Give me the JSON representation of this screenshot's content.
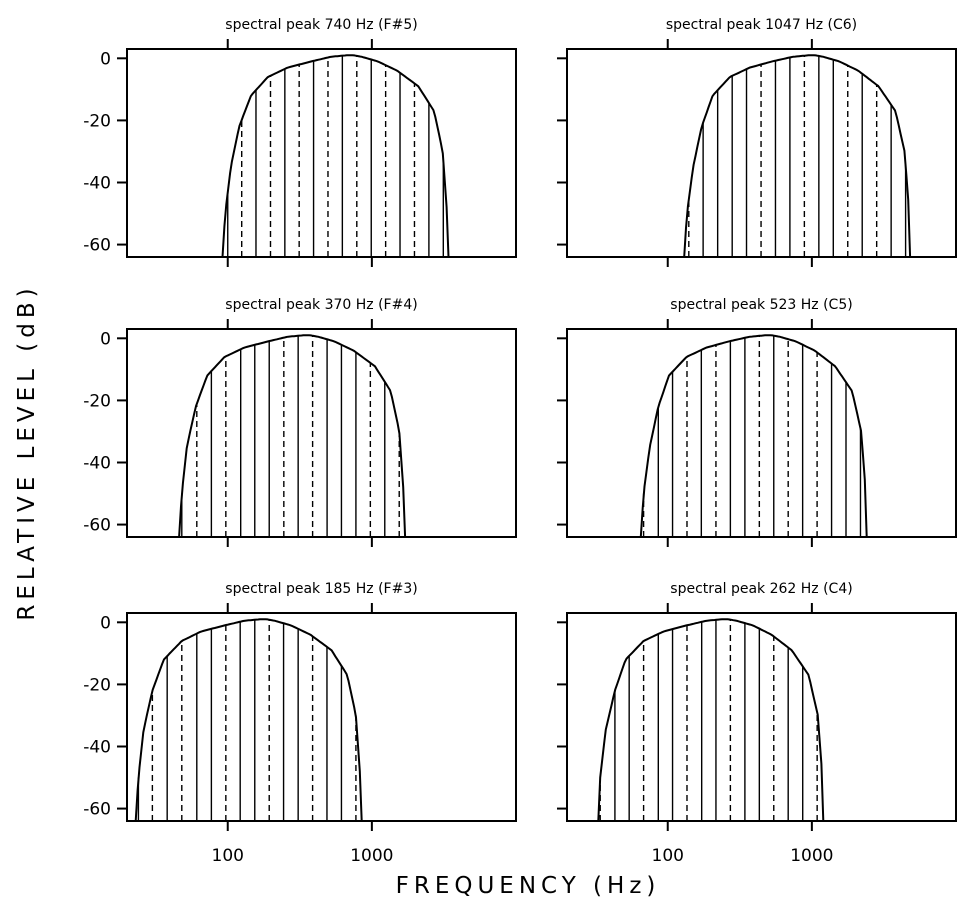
{
  "figure": {
    "ylabel": "RELATIVE LEVEL (dB)",
    "xlabel": "FREQUENCY (Hz)"
  },
  "chart_data": [
    {
      "type": "line",
      "title": "spectral peak  740 Hz (F#5)",
      "peak_hz": 740,
      "x_scale": "log",
      "xlim": [
        20,
        10000
      ],
      "ylim": [
        -64,
        3
      ],
      "ytick_labels": [
        "0",
        "-20",
        "-40",
        "-60"
      ],
      "yticks": [
        0,
        -20,
        -40,
        -60
      ],
      "xticks": [
        100,
        1000
      ],
      "xtick_labels": [],
      "envelope": {
        "x": [
          92,
          96,
          105,
          120,
          145,
          190,
          260,
          380,
          520,
          680,
          740,
          850,
          1100,
          1500,
          2100,
          2700,
          3100,
          3300,
          3400
        ],
        "y": [
          -64,
          -50,
          -35,
          -22,
          -12,
          -6,
          -3,
          -1,
          0.5,
          1,
          1,
          0.5,
          -1,
          -4,
          -9,
          -17,
          -30,
          -48,
          -64
        ]
      },
      "partials": [
        {
          "freq": 100,
          "solid": true
        },
        {
          "freq": 125,
          "solid": false
        },
        {
          "freq": 157,
          "solid": true
        },
        {
          "freq": 198,
          "solid": false
        },
        {
          "freq": 249,
          "solid": true
        },
        {
          "freq": 313,
          "solid": false
        },
        {
          "freq": 394,
          "solid": true
        },
        {
          "freq": 496,
          "solid": false
        },
        {
          "freq": 624,
          "solid": true
        },
        {
          "freq": 786,
          "solid": false
        },
        {
          "freq": 990,
          "solid": true
        },
        {
          "freq": 1246,
          "solid": false
        },
        {
          "freq": 1568,
          "solid": true
        },
        {
          "freq": 1975,
          "solid": false
        },
        {
          "freq": 2487,
          "solid": true
        },
        {
          "freq": 3130,
          "solid": true
        }
      ]
    },
    {
      "type": "line",
      "title": "spectral peak  1047 Hz (C6)",
      "peak_hz": 1047,
      "x_scale": "log",
      "xlim": [
        20,
        10000
      ],
      "ylim": [
        -64,
        3
      ],
      "ytick_labels": [
        "",
        "",
        "",
        ""
      ],
      "yticks": [
        0,
        -20,
        -40,
        -60
      ],
      "xticks": [
        100,
        1000
      ],
      "xtick_labels": [],
      "envelope": {
        "x": [
          130,
          136,
          150,
          172,
          205,
          270,
          370,
          530,
          740,
          960,
          1047,
          1200,
          1550,
          2100,
          2900,
          3800,
          4400,
          4700,
          4800
        ],
        "y": [
          -64,
          -50,
          -35,
          -22,
          -12,
          -6,
          -3,
          -1,
          0.5,
          1,
          1,
          0.5,
          -1,
          -4,
          -9,
          -17,
          -30,
          -48,
          -64
        ]
      },
      "partials": [
        {
          "freq": 140,
          "solid": false
        },
        {
          "freq": 176,
          "solid": true
        },
        {
          "freq": 222,
          "solid": true
        },
        {
          "freq": 280,
          "solid": true
        },
        {
          "freq": 352,
          "solid": true
        },
        {
          "freq": 444,
          "solid": false
        },
        {
          "freq": 559,
          "solid": true
        },
        {
          "freq": 704,
          "solid": true
        },
        {
          "freq": 887,
          "solid": false
        },
        {
          "freq": 1118,
          "solid": true
        },
        {
          "freq": 1408,
          "solid": true
        },
        {
          "freq": 1774,
          "solid": false
        },
        {
          "freq": 2235,
          "solid": true
        },
        {
          "freq": 2816,
          "solid": false
        },
        {
          "freq": 3548,
          "solid": true
        },
        {
          "freq": 4470,
          "solid": true
        }
      ]
    },
    {
      "type": "line",
      "title": "spectral peak  370 Hz (F#4)",
      "peak_hz": 370,
      "x_scale": "log",
      "xlim": [
        20,
        10000
      ],
      "ylim": [
        -64,
        3
      ],
      "ytick_labels": [
        "0",
        "-20",
        "-40",
        "-60"
      ],
      "yticks": [
        0,
        -20,
        -40,
        -60
      ],
      "xticks": [
        100,
        1000
      ],
      "xtick_labels": [],
      "envelope": {
        "x": [
          46,
          48,
          52,
          60,
          72,
          95,
          130,
          190,
          260,
          340,
          370,
          425,
          550,
          750,
          1050,
          1350,
          1550,
          1650,
          1700
        ],
        "y": [
          -64,
          -50,
          -35,
          -22,
          -12,
          -6,
          -3,
          -1,
          0.5,
          1,
          1,
          0.5,
          -1,
          -4,
          -9,
          -17,
          -30,
          -48,
          -64
        ]
      },
      "partials": [
        {
          "freq": 48,
          "solid": true
        },
        {
          "freq": 61,
          "solid": false
        },
        {
          "freq": 77,
          "solid": true
        },
        {
          "freq": 97,
          "solid": false
        },
        {
          "freq": 123,
          "solid": true
        },
        {
          "freq": 154,
          "solid": true
        },
        {
          "freq": 194,
          "solid": true
        },
        {
          "freq": 245,
          "solid": false
        },
        {
          "freq": 308,
          "solid": true
        },
        {
          "freq": 388,
          "solid": false
        },
        {
          "freq": 489,
          "solid": true
        },
        {
          "freq": 615,
          "solid": true
        },
        {
          "freq": 775,
          "solid": true
        },
        {
          "freq": 976,
          "solid": false
        },
        {
          "freq": 1229,
          "solid": true
        },
        {
          "freq": 1548,
          "solid": false
        }
      ]
    },
    {
      "type": "line",
      "title": "spectral peak  523 Hz  (C5)",
      "peak_hz": 523,
      "x_scale": "log",
      "xlim": [
        20,
        10000
      ],
      "ylim": [
        -64,
        3
      ],
      "ytick_labels": [
        "",
        "",
        "",
        ""
      ],
      "yticks": [
        0,
        -20,
        -40,
        -60
      ],
      "xticks": [
        100,
        1000
      ],
      "xtick_labels": [],
      "envelope": {
        "x": [
          65,
          68,
          75,
          86,
          102,
          135,
          185,
          265,
          370,
          480,
          523,
          600,
          775,
          1050,
          1450,
          1900,
          2200,
          2350,
          2400
        ],
        "y": [
          -64,
          -50,
          -35,
          -22,
          -12,
          -6,
          -3,
          -1,
          0.5,
          1,
          1,
          0.5,
          -1,
          -4,
          -9,
          -17,
          -30,
          -48,
          -64
        ]
      },
      "partials": [
        {
          "freq": 68,
          "solid": false
        },
        {
          "freq": 86,
          "solid": true
        },
        {
          "freq": 108,
          "solid": true
        },
        {
          "freq": 136,
          "solid": false
        },
        {
          "freq": 171,
          "solid": true
        },
        {
          "freq": 216,
          "solid": false
        },
        {
          "freq": 272,
          "solid": true
        },
        {
          "freq": 343,
          "solid": true
        },
        {
          "freq": 432,
          "solid": false
        },
        {
          "freq": 544,
          "solid": true
        },
        {
          "freq": 685,
          "solid": false
        },
        {
          "freq": 863,
          "solid": true
        },
        {
          "freq": 1087,
          "solid": false
        },
        {
          "freq": 1370,
          "solid": true
        },
        {
          "freq": 1725,
          "solid": true
        },
        {
          "freq": 2174,
          "solid": true
        }
      ]
    },
    {
      "type": "line",
      "title": "spectral peak  185 Hz  (F#3)",
      "peak_hz": 185,
      "x_scale": "log",
      "xlim": [
        20,
        10000
      ],
      "ylim": [
        -64,
        3
      ],
      "ytick_labels": [
        "0",
        "-20",
        "-40",
        "-60"
      ],
      "yticks": [
        0,
        -20,
        -40,
        -60
      ],
      "xticks": [
        100,
        1000
      ],
      "xtick_labels": [
        "100",
        "1000"
      ],
      "envelope": {
        "x": [
          23,
          24,
          26,
          30,
          36,
          48,
          65,
          95,
          130,
          170,
          185,
          212,
          275,
          375,
          525,
          675,
          775,
          825,
          850
        ],
        "y": [
          -64,
          -50,
          -35,
          -22,
          -12,
          -6,
          -3,
          -1,
          0.5,
          1,
          1,
          0.5,
          -1,
          -4,
          -9,
          -17,
          -30,
          -48,
          -64
        ]
      },
      "partials": [
        {
          "freq": 24,
          "solid": true
        },
        {
          "freq": 30,
          "solid": false
        },
        {
          "freq": 38,
          "solid": true
        },
        {
          "freq": 48,
          "solid": false
        },
        {
          "freq": 61,
          "solid": true
        },
        {
          "freq": 77,
          "solid": true
        },
        {
          "freq": 97,
          "solid": false
        },
        {
          "freq": 122,
          "solid": true
        },
        {
          "freq": 154,
          "solid": true
        },
        {
          "freq": 194,
          "solid": false
        },
        {
          "freq": 244,
          "solid": true
        },
        {
          "freq": 308,
          "solid": true
        },
        {
          "freq": 388,
          "solid": false
        },
        {
          "freq": 488,
          "solid": true
        },
        {
          "freq": 615,
          "solid": true
        },
        {
          "freq": 775,
          "solid": false
        }
      ]
    },
    {
      "type": "line",
      "title": "spectral peak  262 Hz  (C4)",
      "peak_hz": 262,
      "x_scale": "log",
      "xlim": [
        20,
        10000
      ],
      "ylim": [
        -64,
        3
      ],
      "ytick_labels": [
        "",
        "",
        "",
        ""
      ],
      "yticks": [
        0,
        -20,
        -40,
        -60
      ],
      "xticks": [
        100,
        1000
      ],
      "xtick_labels": [
        "100",
        "1000"
      ],
      "envelope": {
        "x": [
          33,
          34,
          37,
          43,
          51,
          68,
          93,
          135,
          185,
          240,
          262,
          300,
          390,
          525,
          725,
          950,
          1100,
          1175,
          1200
        ],
        "y": [
          -64,
          -50,
          -35,
          -22,
          -12,
          -6,
          -3,
          -1,
          0.5,
          1,
          1,
          0.5,
          -1,
          -4,
          -9,
          -17,
          -30,
          -48,
          -64
        ]
      },
      "partials": [
        {
          "freq": 34,
          "solid": false
        },
        {
          "freq": 43,
          "solid": true
        },
        {
          "freq": 54,
          "solid": true
        },
        {
          "freq": 68,
          "solid": false
        },
        {
          "freq": 86,
          "solid": true
        },
        {
          "freq": 108,
          "solid": true
        },
        {
          "freq": 136,
          "solid": false
        },
        {
          "freq": 172,
          "solid": true
        },
        {
          "freq": 216,
          "solid": true
        },
        {
          "freq": 272,
          "solid": false
        },
        {
          "freq": 343,
          "solid": true
        },
        {
          "freq": 432,
          "solid": true
        },
        {
          "freq": 544,
          "solid": false
        },
        {
          "freq": 685,
          "solid": true
        },
        {
          "freq": 864,
          "solid": true
        },
        {
          "freq": 1088,
          "solid": false
        }
      ]
    }
  ]
}
